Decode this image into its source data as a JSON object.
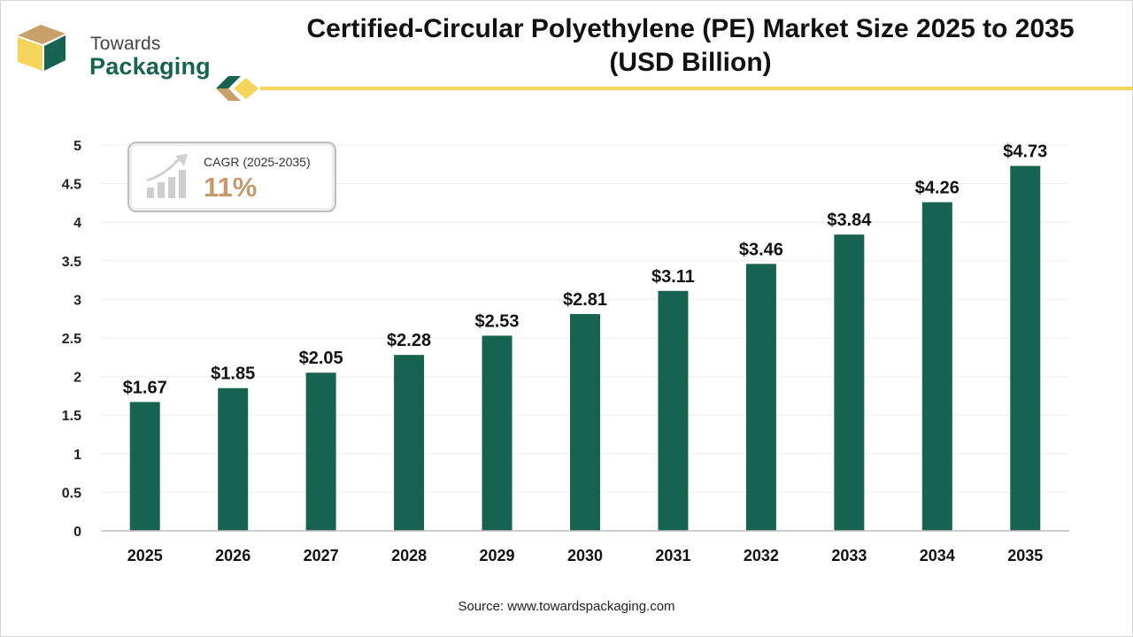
{
  "brand": {
    "line1": "Towards",
    "line2": "Packaging",
    "colors": {
      "green": "#17634f",
      "gold": "#f5d45a",
      "tan": "#c8a06a"
    }
  },
  "cagr": {
    "label": "CAGR (2025-2035)",
    "value": "11%"
  },
  "source": "Source: www.towardspackaging.com",
  "chart_data": {
    "type": "bar",
    "title": "Certified-Circular Polyethylene (PE) Market Size 2025 to 2035 (USD Billion)",
    "title_lines": [
      "Certified-Circular Polyethylene (PE) Market Size 2025 to 2035",
      "(USD Billion)"
    ],
    "categories": [
      "2025",
      "2026",
      "2027",
      "2028",
      "2029",
      "2030",
      "2031",
      "2032",
      "2033",
      "2034",
      "2035"
    ],
    "values": [
      1.67,
      1.85,
      2.05,
      2.28,
      2.53,
      2.81,
      3.11,
      3.46,
      3.84,
      4.26,
      4.73
    ],
    "labels": [
      "$1.67",
      "$1.85",
      "$2.05",
      "$2.28",
      "$2.53",
      "$2.81",
      "$3.11",
      "$3.46",
      "$3.84",
      "$4.26",
      "$4.73"
    ],
    "yticks": [
      "0",
      "0.5",
      "1",
      "1.5",
      "2",
      "2.5",
      "3",
      "3.5",
      "4",
      "4.5",
      "5"
    ],
    "ylim": [
      0,
      5
    ],
    "grid": true,
    "bar_color": "#17634f"
  }
}
